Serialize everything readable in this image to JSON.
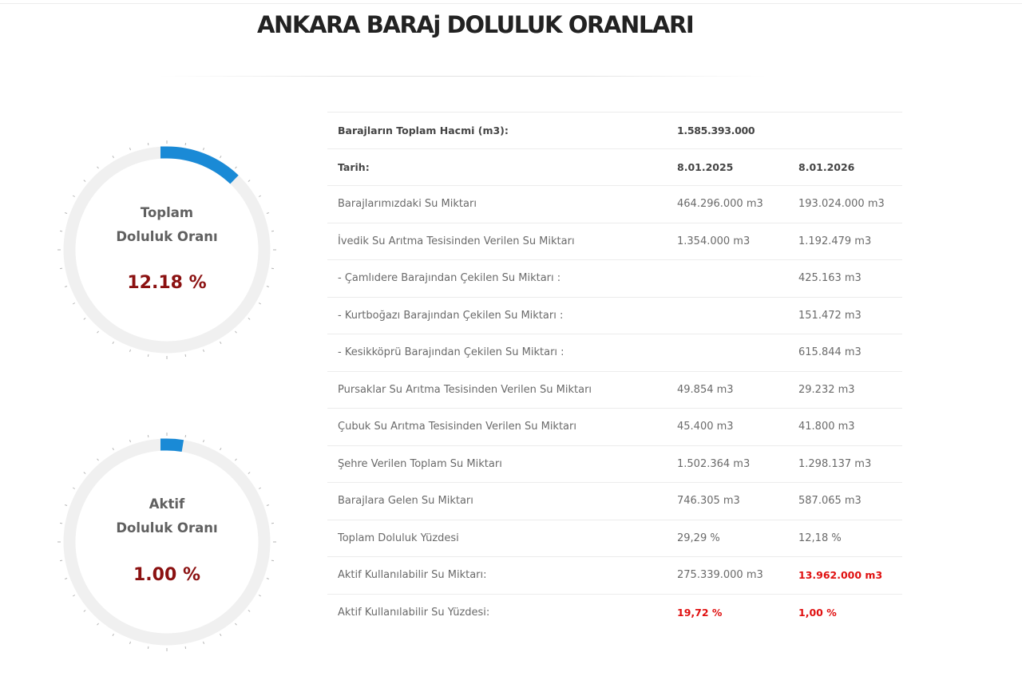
{
  "page": {
    "title": "ANKARA BARAj DOLULUK ORANLARI"
  },
  "colors": {
    "accent": "#1a8ad6",
    "ring_track": "#f0f0f0",
    "value_red": "#8b1111",
    "alert_red": "#e01010"
  },
  "gauges": [
    {
      "label_line1": "Toplam",
      "label_line2": "Doluluk Oranı",
      "value": "12.18 %",
      "fraction": 0.1218
    },
    {
      "label_line1": "Aktif",
      "label_line2": "Doluluk Oranı",
      "value": "1.00 %",
      "fraction": 0.01
    }
  ],
  "table": {
    "total_volume_label": "Barajların Toplam Hacmi (m3):",
    "total_volume_value": "1.585.393.000",
    "date_label": "Tarih:",
    "date_1": "8.01.2025",
    "date_2": "8.01.2026",
    "rows": [
      {
        "label": "Barajlarımızdaki Su Miktarı",
        "v1": "464.296.000 m3",
        "v2": "193.024.000 m3"
      },
      {
        "label": "İvedik Su Arıtma Tesisinden Verilen Su Miktarı",
        "v1": "1.354.000 m3",
        "v2": "1.192.479 m3"
      },
      {
        "label": "- Çamlıdere Barajından Çekilen Su Miktarı :",
        "v1": "",
        "v2": "425.163 m3"
      },
      {
        "label": "- Kurtboğazı Barajından Çekilen Su Miktarı :",
        "v1": "",
        "v2": "151.472 m3"
      },
      {
        "label": "- Kesikköprü Barajından Çekilen Su Miktarı :",
        "v1": "",
        "v2": "615.844 m3"
      },
      {
        "label": "Pursaklar Su Arıtma Tesisinden Verilen Su Miktarı",
        "v1": "49.854 m3",
        "v2": "29.232 m3"
      },
      {
        "label": "Çubuk Su Arıtma Tesisinden Verilen Su Miktarı",
        "v1": "45.400 m3",
        "v2": "41.800 m3"
      },
      {
        "label": "Şehre Verilen Toplam Su Miktarı",
        "v1": "1.502.364 m3",
        "v2": "1.298.137 m3"
      },
      {
        "label": "Barajlara Gelen Su Miktarı",
        "v1": "746.305 m3",
        "v2": "587.065 m3"
      },
      {
        "label": "Toplam Doluluk Yüzdesi",
        "v1": "29,29 %",
        "v2": "12,18 %"
      },
      {
        "label": "Aktif Kullanılabilir Su Miktarı:",
        "v1": "275.339.000 m3",
        "v2": "13.962.000 m3"
      },
      {
        "label": "Aktif Kullanılabilir Su Yüzdesi:",
        "v1": "19,72 %",
        "v2": "1,00 %"
      }
    ]
  }
}
